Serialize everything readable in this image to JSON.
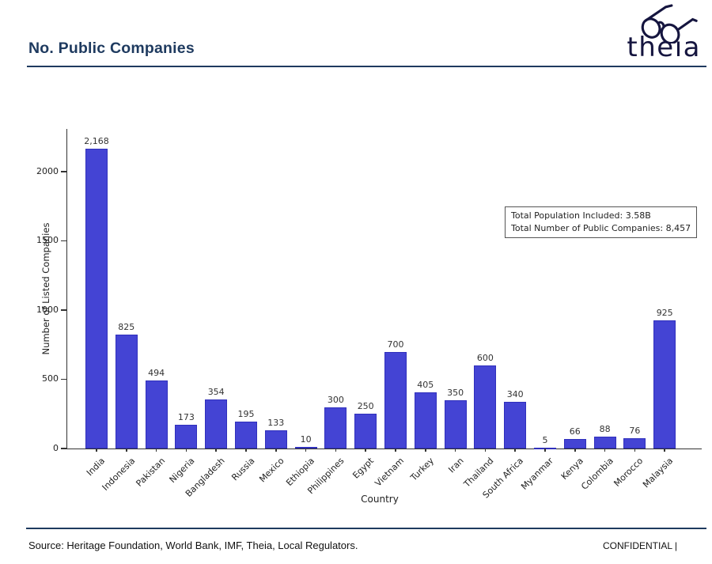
{
  "header": {
    "title": "No. Public Companies",
    "brand": "theıa"
  },
  "chart_data": {
    "type": "bar",
    "title": "",
    "xlabel": "Country",
    "ylabel": "Number of Listed Companies",
    "categories": [
      "India",
      "Indonesia",
      "Pakistan",
      "Nigeria",
      "Bangladesh",
      "Russia",
      "Mexico",
      "Ethiopia",
      "Philippines",
      "Egypt",
      "Vietnam",
      "Turkey",
      "Iran",
      "Thailand",
      "South Africa",
      "Myanmar",
      "Kenya",
      "Colombia",
      "Morocco",
      "Malaysia"
    ],
    "values": [
      2168,
      825,
      494,
      173,
      354,
      195,
      133,
      10,
      300,
      250,
      700,
      405,
      350,
      600,
      340,
      5,
      66,
      88,
      76,
      925
    ],
    "yticks": [
      0,
      500,
      1000,
      1500,
      2000
    ],
    "ylim": [
      0,
      2300
    ],
    "grid": false,
    "legend": "none",
    "bar_color": "#4444d4",
    "annotation": {
      "line1": "Total Population Included: 3.58B",
      "line2": "Total Number of Public Companies: 8,457"
    }
  },
  "footer": {
    "source": "Source: Heritage Foundation, World Bank, IMF, Theia, Local Regulators.",
    "confidential": "CONFIDENTIAL |"
  }
}
